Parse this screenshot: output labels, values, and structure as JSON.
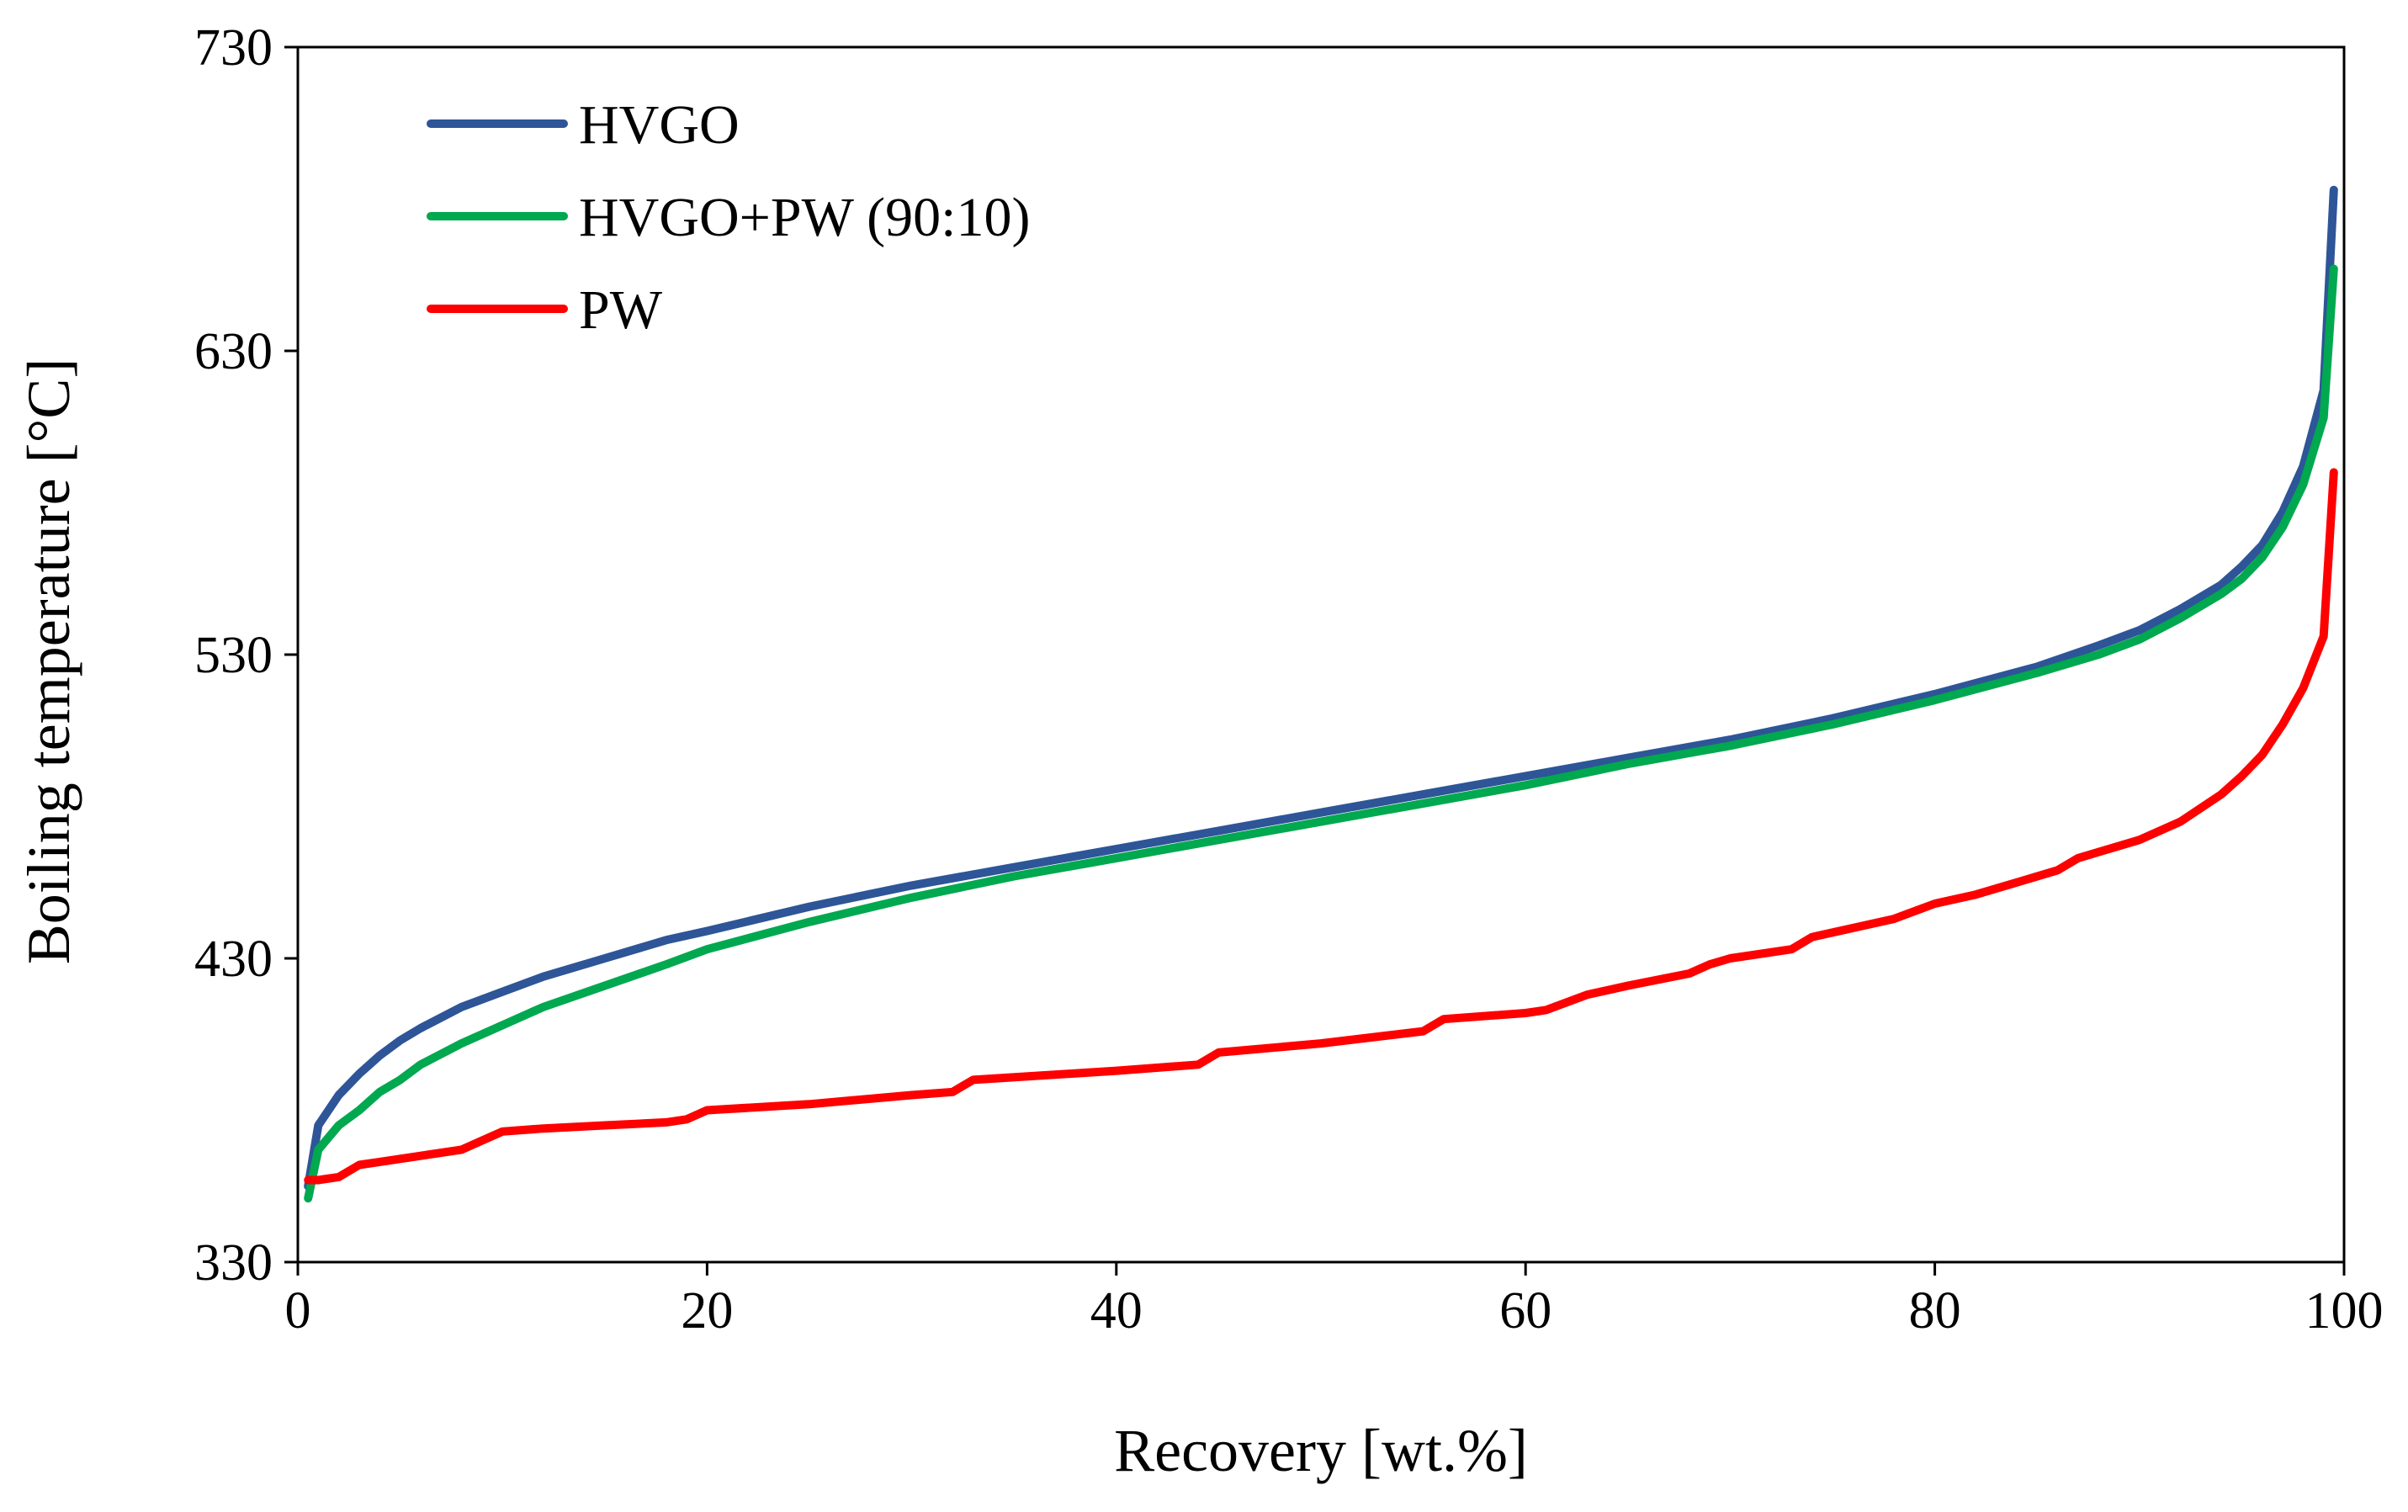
{
  "chart_data": {
    "type": "line",
    "title": "",
    "xlabel": "Recovery [wt.%]",
    "ylabel": "Boiling temperature [°C]",
    "xlim": [
      0,
      100
    ],
    "ylim": [
      330,
      730
    ],
    "xticks": [
      0,
      20,
      40,
      60,
      80,
      100
    ],
    "yticks": [
      330,
      430,
      530,
      630,
      730
    ],
    "grid": false,
    "legend_position": "top-left",
    "series": [
      {
        "name": "HVGO",
        "color": "#2E5597",
        "points": [
          [
            0.5,
            355
          ],
          [
            1,
            375
          ],
          [
            2,
            385
          ],
          [
            3,
            392
          ],
          [
            4,
            398
          ],
          [
            5,
            403
          ],
          [
            6,
            407
          ],
          [
            8,
            414
          ],
          [
            10,
            419
          ],
          [
            12,
            424
          ],
          [
            15,
            430
          ],
          [
            18,
            436
          ],
          [
            20,
            439
          ],
          [
            25,
            447
          ],
          [
            30,
            454
          ],
          [
            35,
            460
          ],
          [
            40,
            466
          ],
          [
            45,
            472
          ],
          [
            50,
            478
          ],
          [
            55,
            484
          ],
          [
            60,
            490
          ],
          [
            65,
            496
          ],
          [
            70,
            502
          ],
          [
            75,
            509
          ],
          [
            80,
            517
          ],
          [
            85,
            526
          ],
          [
            88,
            533
          ],
          [
            90,
            538
          ],
          [
            92,
            545
          ],
          [
            94,
            553
          ],
          [
            95,
            559
          ],
          [
            96,
            566
          ],
          [
            97,
            577
          ],
          [
            98,
            592
          ],
          [
            99,
            617
          ],
          [
            99.5,
            683
          ]
        ]
      },
      {
        "name": "HVGO+PW (90:10)",
        "color": "#00A84F",
        "points": [
          [
            0.5,
            351
          ],
          [
            1,
            367
          ],
          [
            2,
            375
          ],
          [
            3,
            380
          ],
          [
            4,
            386
          ],
          [
            5,
            390
          ],
          [
            6,
            395
          ],
          [
            8,
            402
          ],
          [
            10,
            408
          ],
          [
            12,
            414
          ],
          [
            15,
            421
          ],
          [
            18,
            428
          ],
          [
            20,
            433
          ],
          [
            25,
            442
          ],
          [
            30,
            450
          ],
          [
            35,
            457
          ],
          [
            40,
            463
          ],
          [
            45,
            469
          ],
          [
            50,
            475
          ],
          [
            55,
            481
          ],
          [
            60,
            487
          ],
          [
            65,
            494
          ],
          [
            70,
            500
          ],
          [
            75,
            507
          ],
          [
            80,
            515
          ],
          [
            85,
            524
          ],
          [
            88,
            530
          ],
          [
            90,
            535
          ],
          [
            92,
            542
          ],
          [
            94,
            550
          ],
          [
            95,
            555
          ],
          [
            96,
            562
          ],
          [
            97,
            572
          ],
          [
            98,
            586
          ],
          [
            99,
            608
          ],
          [
            99.5,
            657
          ]
        ]
      },
      {
        "name": "PW",
        "color": "#FF0000",
        "points": [
          [
            0.5,
            357
          ],
          [
            1,
            357
          ],
          [
            2,
            358
          ],
          [
            3,
            362
          ],
          [
            4,
            363
          ],
          [
            5,
            364
          ],
          [
            6,
            365
          ],
          [
            8,
            367
          ],
          [
            9,
            370
          ],
          [
            10,
            373
          ],
          [
            12,
            374
          ],
          [
            15,
            375
          ],
          [
            18,
            376
          ],
          [
            19,
            377
          ],
          [
            20,
            380
          ],
          [
            25,
            382
          ],
          [
            30,
            385
          ],
          [
            32,
            386
          ],
          [
            33,
            390
          ],
          [
            40,
            393
          ],
          [
            44,
            395
          ],
          [
            45,
            399
          ],
          [
            50,
            402
          ],
          [
            55,
            406
          ],
          [
            56,
            410
          ],
          [
            60,
            412
          ],
          [
            61,
            413
          ],
          [
            63,
            418
          ],
          [
            65,
            421
          ],
          [
            68,
            425
          ],
          [
            69,
            428
          ],
          [
            70,
            430
          ],
          [
            73,
            433
          ],
          [
            74,
            437
          ],
          [
            78,
            443
          ],
          [
            80,
            448
          ],
          [
            82,
            451
          ],
          [
            84,
            455
          ],
          [
            86,
            459
          ],
          [
            87,
            463
          ],
          [
            90,
            469
          ],
          [
            92,
            475
          ],
          [
            94,
            484
          ],
          [
            95,
            490
          ],
          [
            96,
            497
          ],
          [
            97,
            507
          ],
          [
            98,
            519
          ],
          [
            99,
            536
          ],
          [
            99.5,
            590
          ]
        ]
      }
    ]
  }
}
